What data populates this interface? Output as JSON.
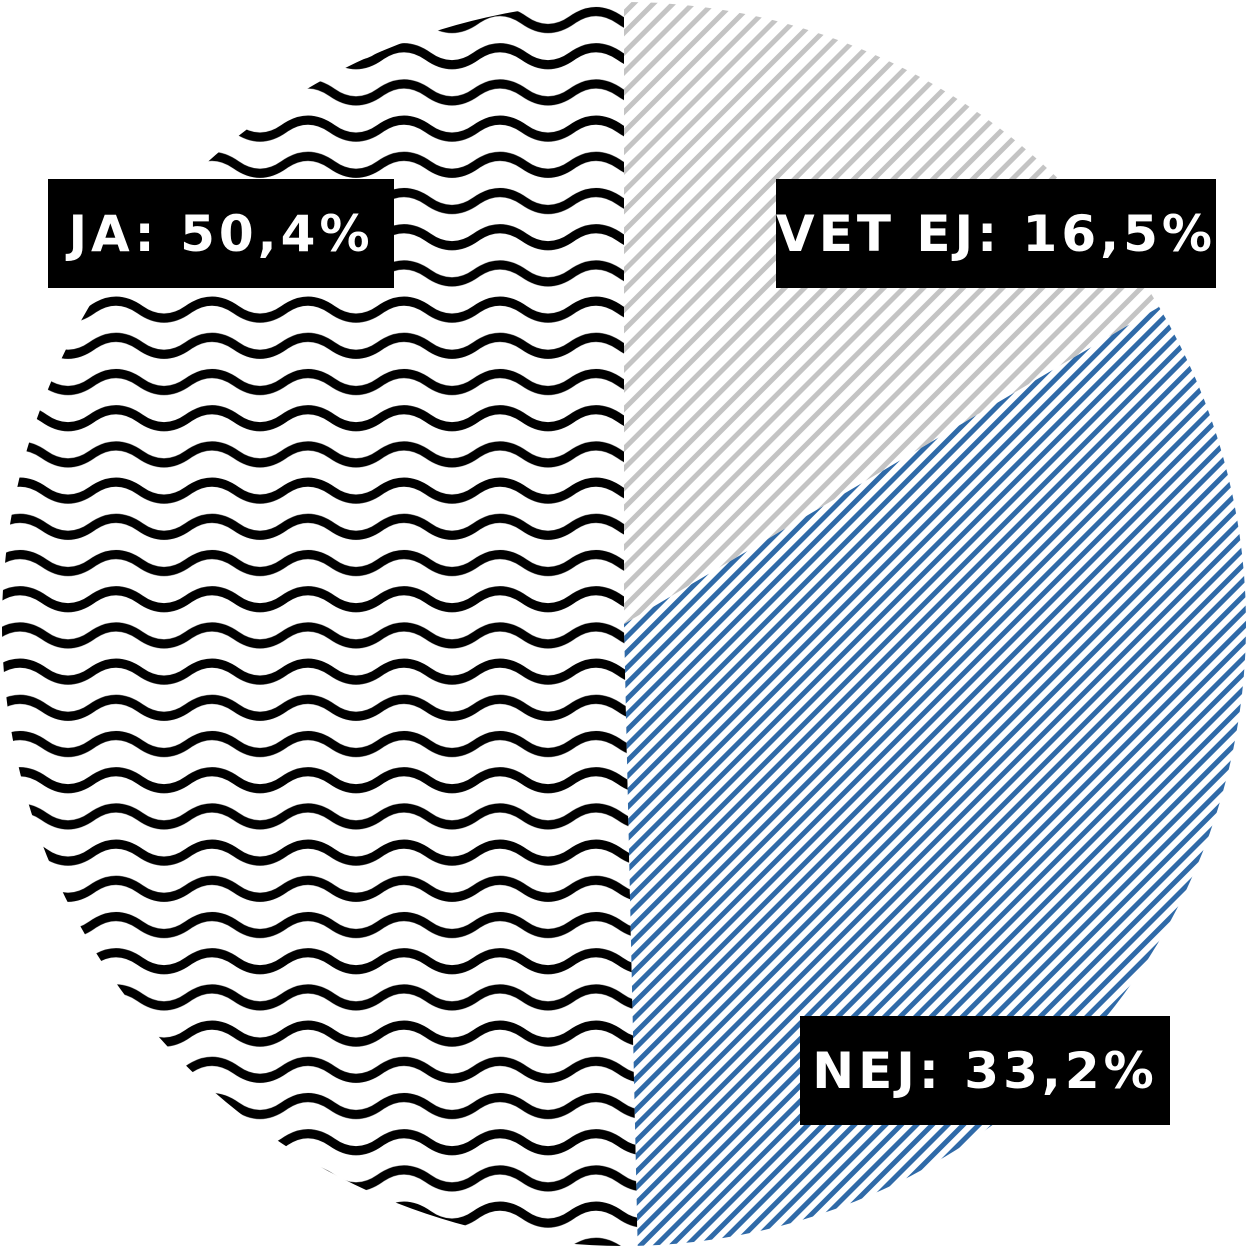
{
  "chart_data": {
    "type": "pie",
    "slices": [
      {
        "label": "JA",
        "value": 50.4,
        "display": "JA: 50,4%",
        "pattern": "waves",
        "color": "#000000"
      },
      {
        "label": "NEJ",
        "value": 33.2,
        "display": "NEJ: 33,2%",
        "pattern": "diagonal-stripes",
        "color": "#2f6aa8"
      },
      {
        "label": "VET EJ",
        "value": 16.5,
        "display": "VET EJ: 16,5%",
        "pattern": "diagonal-stripes",
        "color": "#c4c4c4"
      }
    ],
    "start": "12 o'clock",
    "direction": "counterclockwise",
    "legend": "none",
    "label_style": {
      "background": "#000000",
      "text": "#ffffff"
    }
  }
}
